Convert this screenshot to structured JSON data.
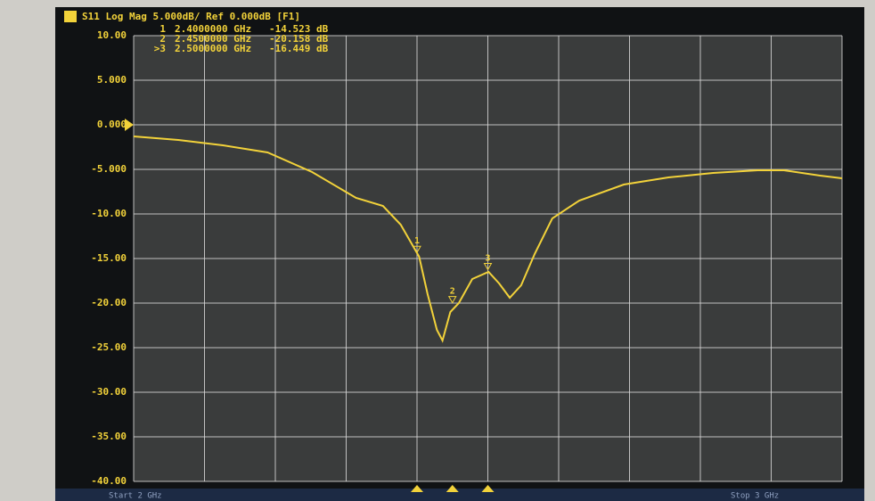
{
  "chart_data": {
    "type": "line",
    "title": "S11 Log Mag 5.000dB/ Ref 0.000dB [F1]",
    "x": [
      2.0,
      2.063,
      2.126,
      2.189,
      2.252,
      2.314,
      2.352,
      2.377,
      2.403,
      2.415,
      2.428,
      2.436,
      2.447,
      2.459,
      2.478,
      2.501,
      2.516,
      2.531,
      2.547,
      2.566,
      2.591,
      2.629,
      2.692,
      2.755,
      2.818,
      2.881,
      2.918,
      2.969,
      3.0
    ],
    "series": [
      {
        "name": "S11",
        "color": "#f2d23a",
        "values": [
          -1.3,
          -1.7,
          -2.3,
          -3.1,
          -5.3,
          -8.2,
          -9.1,
          -11.2,
          -14.8,
          -19,
          -23,
          -24.2,
          -21,
          -20,
          -17.3,
          -16.5,
          -17.8,
          -19.4,
          -18,
          -14.5,
          -10.5,
          -8.5,
          -6.7,
          -5.9,
          -5.4,
          -5.1,
          -5.1,
          -5.7,
          -6.0
        ]
      }
    ],
    "xlim": [
      2,
      3
    ],
    "xticks": [
      2,
      2.1,
      2.2,
      2.3,
      2.4,
      2.5,
      2.6,
      2.7,
      2.8,
      2.9,
      3
    ],
    "ylim": [
      -40,
      10
    ],
    "yticks": [
      {
        "value": 10,
        "label": "10.00"
      },
      {
        "value": 5,
        "label": "5.000"
      },
      {
        "value": 0,
        "label": "0.000"
      },
      {
        "value": -5,
        "label": "-5.000"
      },
      {
        "value": -10,
        "label": "-10.00"
      },
      {
        "value": -15,
        "label": "-15.00"
      },
      {
        "value": -20,
        "label": "-20.00"
      },
      {
        "value": -25,
        "label": "-25.00"
      },
      {
        "value": -30,
        "label": "-30.00"
      },
      {
        "value": -35,
        "label": "-35.00"
      },
      {
        "value": -40,
        "label": "-40.00"
      }
    ],
    "grid": true,
    "markers": [
      {
        "name": "1",
        "readout_name": "1",
        "x": 2.4,
        "x_label": "2.4000000 GHz",
        "value": -14.523,
        "value_label": "-14.523 dB"
      },
      {
        "name": "2",
        "readout_name": "2",
        "x": 2.45,
        "x_label": "2.4500000 GHz",
        "value": -20.158,
        "value_label": "-20.158 dB"
      },
      {
        "name": "3",
        "readout_name": ">3",
        "x": 2.5,
        "x_label": "2.5000000 GHz",
        "value": -16.449,
        "value_label": "-16.449 dB"
      }
    ],
    "footer": {
      "start": "Start 2 GHz",
      "stop": "Stop 3 GHz"
    }
  }
}
